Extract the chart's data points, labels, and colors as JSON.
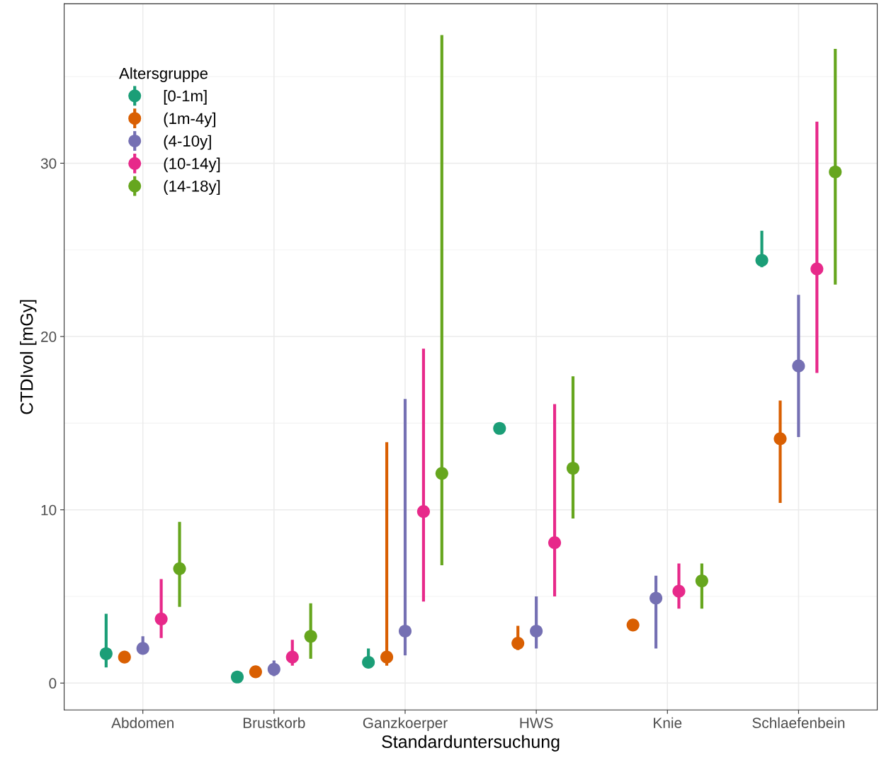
{
  "chart_data": {
    "type": "scatter",
    "xlabel": "Standarduntersuchung",
    "ylabel": "CTDIvol [mGy]",
    "legend_title": "Altersgruppe",
    "categories": [
      "Abdomen",
      "Brustkorb",
      "Ganzkoerper",
      "HWS",
      "Knie",
      "Schlaefenbein"
    ],
    "series": [
      {
        "name": "[0-1m]",
        "color": "#1b9e77",
        "values": [
          1.7,
          0.35,
          1.2,
          14.7,
          null,
          24.4
        ],
        "errors": [
          [
            0.9,
            4.0
          ],
          null,
          [
            0.9,
            2.0
          ],
          null,
          null,
          [
            24.0,
            26.1
          ]
        ]
      },
      {
        "name": "(1m-4y]",
        "color": "#d95f02",
        "values": [
          1.5,
          0.65,
          1.5,
          2.3,
          3.35,
          14.1
        ],
        "errors": [
          null,
          null,
          [
            1.0,
            13.9
          ],
          [
            1.9,
            3.3
          ],
          null,
          [
            10.4,
            16.3
          ]
        ]
      },
      {
        "name": "(4-10y]",
        "color": "#7570b3",
        "values": [
          2.0,
          0.8,
          3.0,
          3.0,
          4.9,
          18.3
        ],
        "errors": [
          [
            1.7,
            2.7
          ],
          [
            0.4,
            1.3
          ],
          [
            1.6,
            16.4
          ],
          [
            2.0,
            5.0
          ],
          [
            2.0,
            6.2
          ],
          [
            14.2,
            22.4
          ]
        ]
      },
      {
        "name": "(10-14y]",
        "color": "#e7298a",
        "values": [
          3.7,
          1.5,
          9.9,
          8.1,
          5.3,
          23.9
        ],
        "errors": [
          [
            2.6,
            6.0
          ],
          [
            1.0,
            2.5
          ],
          [
            4.7,
            19.3
          ],
          [
            5.0,
            16.1
          ],
          [
            4.3,
            6.9
          ],
          [
            17.9,
            32.4
          ]
        ]
      },
      {
        "name": "(14-18y]",
        "color": "#66a61e",
        "values": [
          6.6,
          2.7,
          12.1,
          12.4,
          5.9,
          29.5
        ],
        "errors": [
          [
            4.4,
            9.3
          ],
          [
            1.4,
            4.6
          ],
          [
            6.8,
            37.4
          ],
          [
            9.5,
            17.7
          ],
          [
            4.3,
            6.9
          ],
          [
            23.0,
            36.6
          ]
        ]
      }
    ],
    "ylim": [
      -1.55,
      39.2
    ],
    "yticks": [
      0,
      10,
      20,
      30
    ],
    "grid": true,
    "legend": "top left",
    "marker": "circle"
  }
}
